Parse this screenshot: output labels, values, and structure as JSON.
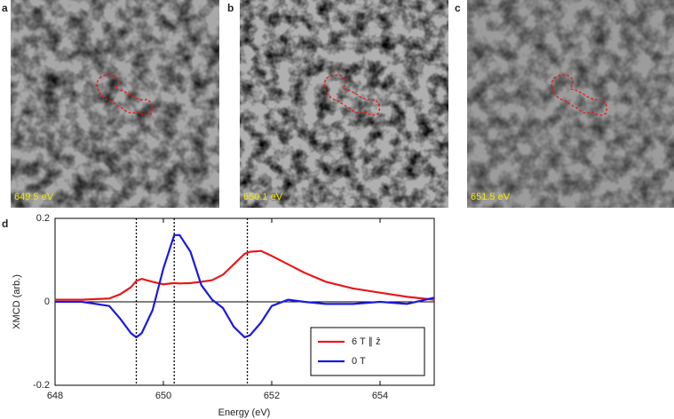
{
  "panels": [
    {
      "letter": "a",
      "label": "649.5 eV"
    },
    {
      "letter": "b",
      "label": "650.1 eV"
    },
    {
      "letter": "c",
      "label": "651.5 eV"
    }
  ],
  "chart_label": "d",
  "chart_data": {
    "type": "line",
    "xlabel": "Energy (eV)",
    "ylabel": "XMCD (arb.)",
    "x": [
      648,
      648.5,
      649,
      649.2,
      649.4,
      649.5,
      649.6,
      649.8,
      650,
      650.2,
      650.3,
      650.5,
      650.7,
      650.9,
      651.1,
      651.3,
      651.5,
      651.6,
      651.8,
      652,
      652.3,
      652.6,
      653,
      653.5,
      654,
      654.5,
      655
    ],
    "series": [
      {
        "name": "6 T ∥ ẑ",
        "color": "#e8191b",
        "values": [
          0.005,
          0.005,
          0.008,
          0.018,
          0.035,
          0.05,
          0.055,
          0.048,
          0.042,
          0.045,
          0.044,
          0.045,
          0.048,
          0.052,
          0.065,
          0.09,
          0.115,
          0.12,
          0.122,
          0.11,
          0.09,
          0.07,
          0.048,
          0.032,
          0.022,
          0.012,
          0.005
        ]
      },
      {
        "name": "0 T",
        "color": "#1a1ae0",
        "values": [
          0,
          0,
          -0.01,
          -0.04,
          -0.075,
          -0.085,
          -0.075,
          -0.02,
          0.08,
          0.16,
          0.16,
          0.12,
          0.04,
          0.005,
          -0.015,
          -0.06,
          -0.085,
          -0.08,
          -0.05,
          -0.01,
          0.005,
          0,
          -0.005,
          -0.005,
          0,
          -0.005,
          0.01
        ]
      }
    ],
    "vlines": [
      649.5,
      650.2,
      651.55
    ],
    "xlim": [
      648,
      655
    ],
    "xticks": [
      648,
      650,
      652,
      654
    ],
    "ylim": [
      -0.2,
      0.2
    ],
    "yticks": [
      -0.2,
      0,
      0.2
    ],
    "legend": "lower-right"
  }
}
